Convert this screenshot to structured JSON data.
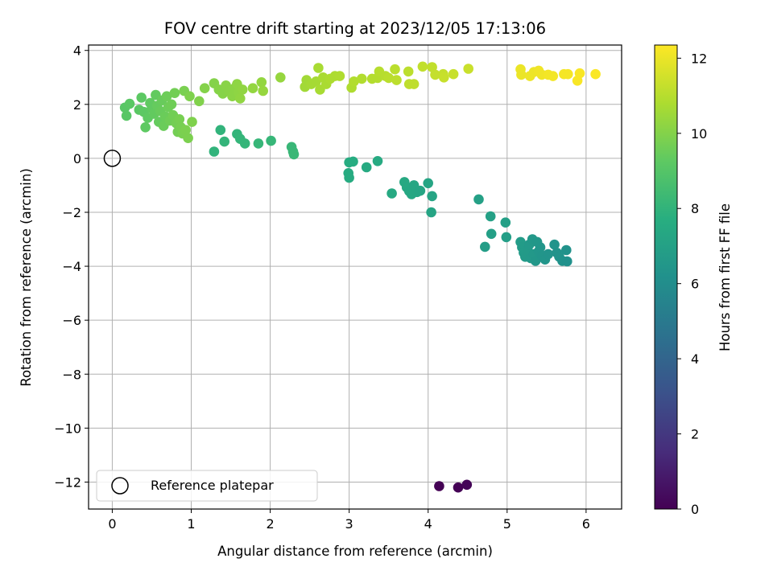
{
  "chart_data": {
    "type": "scatter",
    "title": "FOV centre drift starting at 2023/12/05 17:13:06",
    "xlabel": "Angular distance from reference (arcmin)",
    "ylabel": "Rotation from reference (arcmin)",
    "xlim": [
      -0.3,
      6.45
    ],
    "ylim": [
      -13.0,
      4.2
    ],
    "xticks": [
      0,
      1,
      2,
      3,
      4,
      5,
      6
    ],
    "yticks": [
      4,
      2,
      0,
      -2,
      -4,
      -6,
      -8,
      -10,
      -12
    ],
    "grid": true,
    "legend": {
      "placement": "lower-left",
      "entries": [
        "Reference platepar"
      ]
    },
    "reference_point": {
      "x": 0,
      "y": 0
    },
    "colorbar": {
      "label": "Hours from first FF file",
      "range": [
        0,
        12.35
      ],
      "ticks": [
        0,
        2,
        4,
        6,
        8,
        10,
        12
      ],
      "colormap": "viridis"
    },
    "points": [
      {
        "x": 4.14,
        "y": -12.15,
        "h": 0.0
      },
      {
        "x": 4.38,
        "y": -12.2,
        "h": 0.05
      },
      {
        "x": 4.49,
        "y": -12.1,
        "h": 0.1
      },
      {
        "x": 4.64,
        "y": -1.52,
        "h": 7.0
      },
      {
        "x": 4.79,
        "y": -2.15,
        "h": 6.95
      },
      {
        "x": 4.8,
        "y": -2.8,
        "h": 6.9
      },
      {
        "x": 4.98,
        "y": -2.38,
        "h": 6.9
      },
      {
        "x": 4.99,
        "y": -2.92,
        "h": 6.85
      },
      {
        "x": 4.72,
        "y": -3.28,
        "h": 6.8
      },
      {
        "x": 5.17,
        "y": -3.1,
        "h": 6.75
      },
      {
        "x": 5.19,
        "y": -3.3,
        "h": 6.7
      },
      {
        "x": 5.21,
        "y": -3.5,
        "h": 6.7
      },
      {
        "x": 5.23,
        "y": -3.65,
        "h": 6.65
      },
      {
        "x": 5.26,
        "y": -3.4,
        "h": 6.65
      },
      {
        "x": 5.28,
        "y": -3.2,
        "h": 6.6
      },
      {
        "x": 5.3,
        "y": -3.7,
        "h": 6.6
      },
      {
        "x": 5.32,
        "y": -3.0,
        "h": 6.55
      },
      {
        "x": 5.34,
        "y": -3.55,
        "h": 6.55
      },
      {
        "x": 5.36,
        "y": -3.8,
        "h": 6.5
      },
      {
        "x": 5.38,
        "y": -3.1,
        "h": 6.5
      },
      {
        "x": 5.4,
        "y": -3.45,
        "h": 6.45
      },
      {
        "x": 5.42,
        "y": -3.3,
        "h": 6.45
      },
      {
        "x": 5.44,
        "y": -3.6,
        "h": 6.4
      },
      {
        "x": 5.48,
        "y": -3.75,
        "h": 6.4
      },
      {
        "x": 5.52,
        "y": -3.55,
        "h": 6.35
      },
      {
        "x": 5.6,
        "y": -3.2,
        "h": 6.35
      },
      {
        "x": 5.63,
        "y": -3.5,
        "h": 6.3
      },
      {
        "x": 5.66,
        "y": -3.65,
        "h": 6.3
      },
      {
        "x": 5.7,
        "y": -3.8,
        "h": 6.25
      },
      {
        "x": 5.75,
        "y": -3.4,
        "h": 6.25
      },
      {
        "x": 5.76,
        "y": -3.82,
        "h": 6.2
      },
      {
        "x": 3.0,
        "y": -0.15,
        "h": 7.6
      },
      {
        "x": 3.05,
        "y": -0.12,
        "h": 7.6
      },
      {
        "x": 2.99,
        "y": -0.55,
        "h": 7.55
      },
      {
        "x": 3.0,
        "y": -0.72,
        "h": 7.55
      },
      {
        "x": 3.22,
        "y": -0.33,
        "h": 7.5
      },
      {
        "x": 3.36,
        "y": -0.1,
        "h": 7.5
      },
      {
        "x": 3.54,
        "y": -1.3,
        "h": 7.45
      },
      {
        "x": 3.7,
        "y": -0.88,
        "h": 7.4
      },
      {
        "x": 3.73,
        "y": -1.08,
        "h": 7.4
      },
      {
        "x": 3.76,
        "y": -1.22,
        "h": 7.35
      },
      {
        "x": 3.79,
        "y": -1.33,
        "h": 7.35
      },
      {
        "x": 3.82,
        "y": -1.0,
        "h": 7.3
      },
      {
        "x": 3.86,
        "y": -1.25,
        "h": 7.3
      },
      {
        "x": 3.9,
        "y": -1.2,
        "h": 7.25
      },
      {
        "x": 4.0,
        "y": -0.92,
        "h": 7.25
      },
      {
        "x": 4.05,
        "y": -1.4,
        "h": 7.2
      },
      {
        "x": 4.04,
        "y": -2.0,
        "h": 7.2
      },
      {
        "x": 1.29,
        "y": 0.25,
        "h": 8.0
      },
      {
        "x": 1.37,
        "y": 1.05,
        "h": 8.0
      },
      {
        "x": 1.42,
        "y": 0.62,
        "h": 8.05
      },
      {
        "x": 1.58,
        "y": 0.9,
        "h": 8.05
      },
      {
        "x": 1.62,
        "y": 0.72,
        "h": 8.1
      },
      {
        "x": 1.68,
        "y": 0.55,
        "h": 8.1
      },
      {
        "x": 1.85,
        "y": 0.55,
        "h": 8.15
      },
      {
        "x": 2.01,
        "y": 0.65,
        "h": 8.15
      },
      {
        "x": 2.27,
        "y": 0.42,
        "h": 8.2
      },
      {
        "x": 2.29,
        "y": 0.25,
        "h": 8.2
      },
      {
        "x": 2.3,
        "y": 0.15,
        "h": 8.25
      },
      {
        "x": 0.16,
        "y": 1.88,
        "h": 9.1
      },
      {
        "x": 0.18,
        "y": 1.58,
        "h": 9.1
      },
      {
        "x": 0.22,
        "y": 2.02,
        "h": 9.15
      },
      {
        "x": 0.34,
        "y": 1.8,
        "h": 9.15
      },
      {
        "x": 0.37,
        "y": 2.25,
        "h": 9.2
      },
      {
        "x": 0.4,
        "y": 1.72,
        "h": 9.2
      },
      {
        "x": 0.42,
        "y": 1.15,
        "h": 9.25
      },
      {
        "x": 0.45,
        "y": 1.5,
        "h": 9.25
      },
      {
        "x": 0.48,
        "y": 2.05,
        "h": 9.3
      },
      {
        "x": 0.5,
        "y": 1.85,
        "h": 9.3
      },
      {
        "x": 0.53,
        "y": 1.65,
        "h": 9.35
      },
      {
        "x": 0.55,
        "y": 2.35,
        "h": 9.35
      },
      {
        "x": 0.57,
        "y": 1.95,
        "h": 9.4
      },
      {
        "x": 0.59,
        "y": 1.35,
        "h": 9.4
      },
      {
        "x": 0.61,
        "y": 1.75,
        "h": 9.45
      },
      {
        "x": 0.63,
        "y": 2.15,
        "h": 9.45
      },
      {
        "x": 0.65,
        "y": 1.2,
        "h": 9.5
      },
      {
        "x": 0.67,
        "y": 1.55,
        "h": 9.5
      },
      {
        "x": 0.69,
        "y": 2.3,
        "h": 9.55
      },
      {
        "x": 0.71,
        "y": 1.9,
        "h": 9.55
      },
      {
        "x": 0.73,
        "y": 1.4,
        "h": 9.6
      },
      {
        "x": 0.75,
        "y": 2.0,
        "h": 9.6
      },
      {
        "x": 0.77,
        "y": 1.6,
        "h": 9.65
      },
      {
        "x": 0.79,
        "y": 2.42,
        "h": 9.65
      },
      {
        "x": 0.81,
        "y": 1.3,
        "h": 9.7
      },
      {
        "x": 0.83,
        "y": 0.98,
        "h": 9.7
      },
      {
        "x": 0.85,
        "y": 1.45,
        "h": 9.75
      },
      {
        "x": 0.87,
        "y": 1.15,
        "h": 9.75
      },
      {
        "x": 0.89,
        "y": 0.92,
        "h": 9.8
      },
      {
        "x": 0.91,
        "y": 2.5,
        "h": 9.8
      },
      {
        "x": 0.93,
        "y": 1.05,
        "h": 9.85
      },
      {
        "x": 0.96,
        "y": 0.75,
        "h": 9.85
      },
      {
        "x": 0.98,
        "y": 2.3,
        "h": 9.9
      },
      {
        "x": 1.01,
        "y": 1.35,
        "h": 9.9
      },
      {
        "x": 1.1,
        "y": 2.12,
        "h": 9.95
      },
      {
        "x": 1.17,
        "y": 2.6,
        "h": 10.0
      },
      {
        "x": 1.29,
        "y": 2.78,
        "h": 10.0
      },
      {
        "x": 1.35,
        "y": 2.55,
        "h": 10.05
      },
      {
        "x": 1.4,
        "y": 2.4,
        "h": 10.05
      },
      {
        "x": 1.44,
        "y": 2.7,
        "h": 10.1
      },
      {
        "x": 1.48,
        "y": 2.5,
        "h": 10.1
      },
      {
        "x": 1.52,
        "y": 2.3,
        "h": 10.15
      },
      {
        "x": 1.55,
        "y": 2.6,
        "h": 10.15
      },
      {
        "x": 1.58,
        "y": 2.75,
        "h": 10.2
      },
      {
        "x": 1.6,
        "y": 2.45,
        "h": 10.2
      },
      {
        "x": 1.62,
        "y": 2.22,
        "h": 10.25
      },
      {
        "x": 1.65,
        "y": 2.55,
        "h": 10.25
      },
      {
        "x": 1.78,
        "y": 2.6,
        "h": 10.3
      },
      {
        "x": 1.89,
        "y": 2.82,
        "h": 10.3
      },
      {
        "x": 1.91,
        "y": 2.5,
        "h": 10.35
      },
      {
        "x": 2.13,
        "y": 3.0,
        "h": 10.35
      },
      {
        "x": 2.44,
        "y": 2.65,
        "h": 10.6
      },
      {
        "x": 2.46,
        "y": 2.9,
        "h": 10.6
      },
      {
        "x": 2.52,
        "y": 2.75,
        "h": 10.65
      },
      {
        "x": 2.58,
        "y": 2.85,
        "h": 10.65
      },
      {
        "x": 2.61,
        "y": 3.35,
        "h": 10.7
      },
      {
        "x": 2.63,
        "y": 2.55,
        "h": 10.7
      },
      {
        "x": 2.67,
        "y": 3.0,
        "h": 10.75
      },
      {
        "x": 2.71,
        "y": 2.75,
        "h": 10.75
      },
      {
        "x": 2.76,
        "y": 2.95,
        "h": 10.8
      },
      {
        "x": 2.82,
        "y": 3.05,
        "h": 10.8
      },
      {
        "x": 2.88,
        "y": 3.05,
        "h": 10.85
      },
      {
        "x": 3.03,
        "y": 2.62,
        "h": 10.85
      },
      {
        "x": 3.06,
        "y": 2.85,
        "h": 10.9
      },
      {
        "x": 3.16,
        "y": 2.95,
        "h": 10.9
      },
      {
        "x": 3.29,
        "y": 2.95,
        "h": 10.95
      },
      {
        "x": 3.36,
        "y": 2.98,
        "h": 10.95
      },
      {
        "x": 3.38,
        "y": 3.22,
        "h": 11.0
      },
      {
        "x": 3.46,
        "y": 3.05,
        "h": 11.0
      },
      {
        "x": 3.5,
        "y": 2.98,
        "h": 11.05
      },
      {
        "x": 3.58,
        "y": 3.3,
        "h": 11.05
      },
      {
        "x": 3.6,
        "y": 2.9,
        "h": 11.1
      },
      {
        "x": 3.75,
        "y": 3.22,
        "h": 11.1
      },
      {
        "x": 3.76,
        "y": 2.75,
        "h": 11.15
      },
      {
        "x": 3.82,
        "y": 2.75,
        "h": 11.15
      },
      {
        "x": 3.93,
        "y": 3.4,
        "h": 11.2
      },
      {
        "x": 4.05,
        "y": 3.38,
        "h": 11.2
      },
      {
        "x": 4.09,
        "y": 3.1,
        "h": 11.25
      },
      {
        "x": 4.19,
        "y": 3.12,
        "h": 11.25
      },
      {
        "x": 4.2,
        "y": 3.0,
        "h": 11.3
      },
      {
        "x": 4.32,
        "y": 3.12,
        "h": 11.3
      },
      {
        "x": 4.51,
        "y": 3.32,
        "h": 11.35
      },
      {
        "x": 5.17,
        "y": 3.3,
        "h": 12.0
      },
      {
        "x": 5.18,
        "y": 3.1,
        "h": 12.0
      },
      {
        "x": 5.29,
        "y": 3.05,
        "h": 12.05
      },
      {
        "x": 5.34,
        "y": 3.2,
        "h": 12.05
      },
      {
        "x": 5.4,
        "y": 3.25,
        "h": 12.1
      },
      {
        "x": 5.44,
        "y": 3.1,
        "h": 12.1
      },
      {
        "x": 5.52,
        "y": 3.1,
        "h": 12.15
      },
      {
        "x": 5.58,
        "y": 3.05,
        "h": 12.15
      },
      {
        "x": 5.72,
        "y": 3.12,
        "h": 12.2
      },
      {
        "x": 5.77,
        "y": 3.12,
        "h": 12.2
      },
      {
        "x": 5.89,
        "y": 2.88,
        "h": 12.25
      },
      {
        "x": 5.92,
        "y": 3.15,
        "h": 12.25
      },
      {
        "x": 6.12,
        "y": 3.12,
        "h": 12.3
      }
    ]
  }
}
